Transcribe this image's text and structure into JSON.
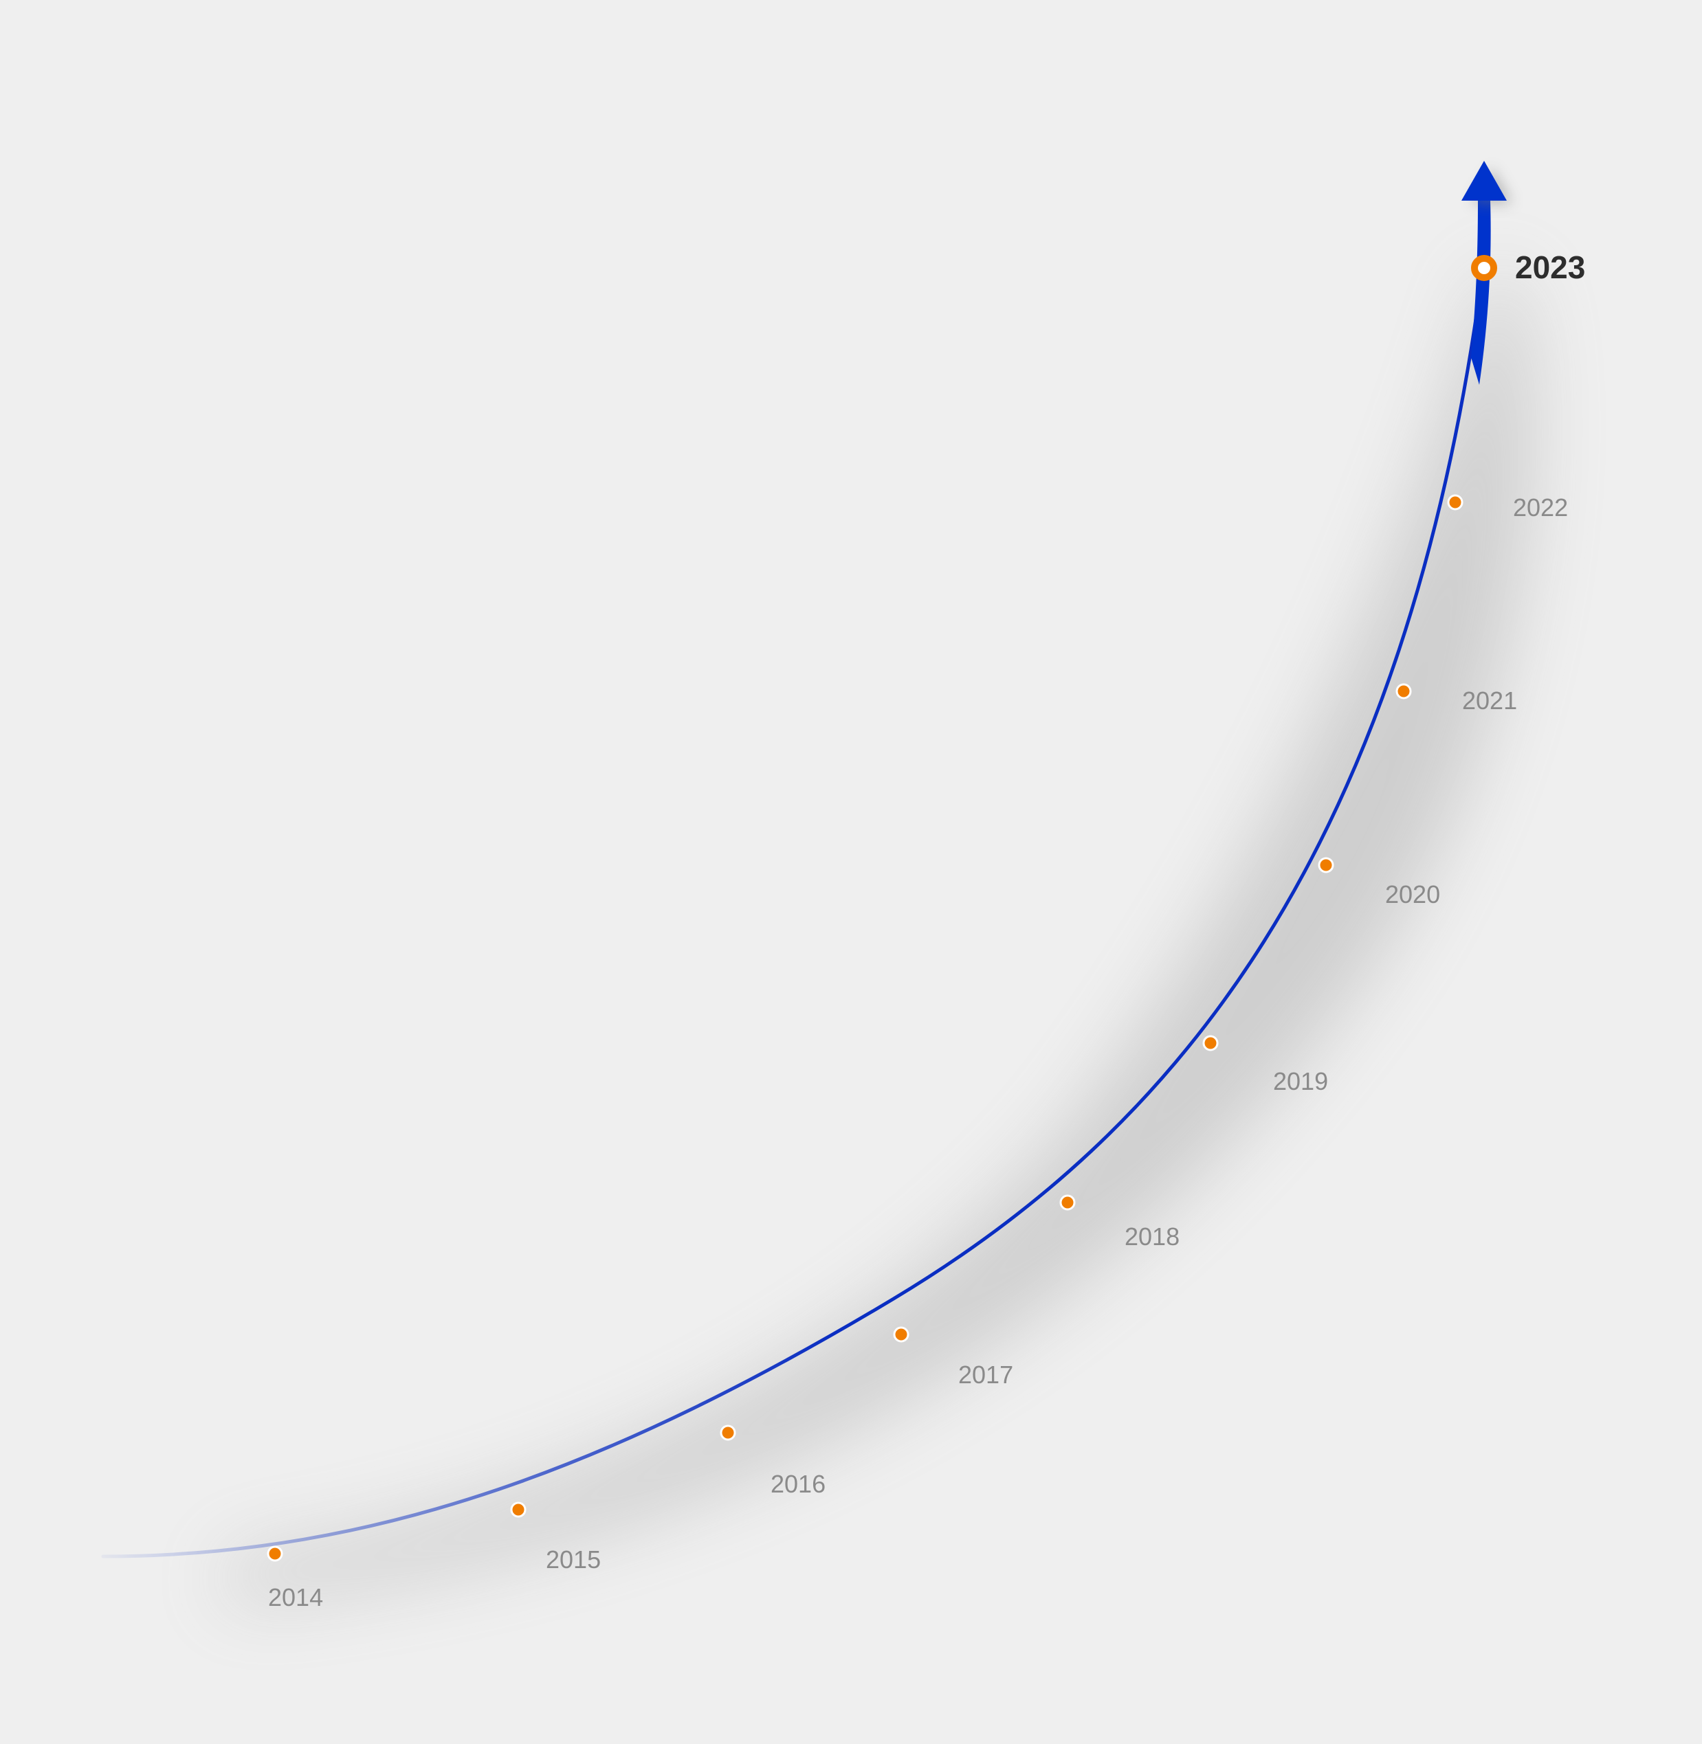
{
  "colors": {
    "background": "#efefef",
    "curve": "#0a2ec2",
    "arrow": "#0033cc",
    "marker": "#f07d00",
    "marker_ring": "#ffffff",
    "label": "#8a8a8a",
    "current_label": "#2d2d2d"
  },
  "timeline": {
    "milestones": [
      {
        "label": "2014"
      },
      {
        "label": "2015"
      },
      {
        "label": "2016"
      },
      {
        "label": "2017"
      },
      {
        "label": "2018"
      },
      {
        "label": "2019"
      },
      {
        "label": "2020"
      },
      {
        "label": "2021"
      },
      {
        "label": "2022"
      },
      {
        "label": "2023",
        "current": true
      }
    ],
    "arrow_icon": "arrow-up-icon"
  }
}
